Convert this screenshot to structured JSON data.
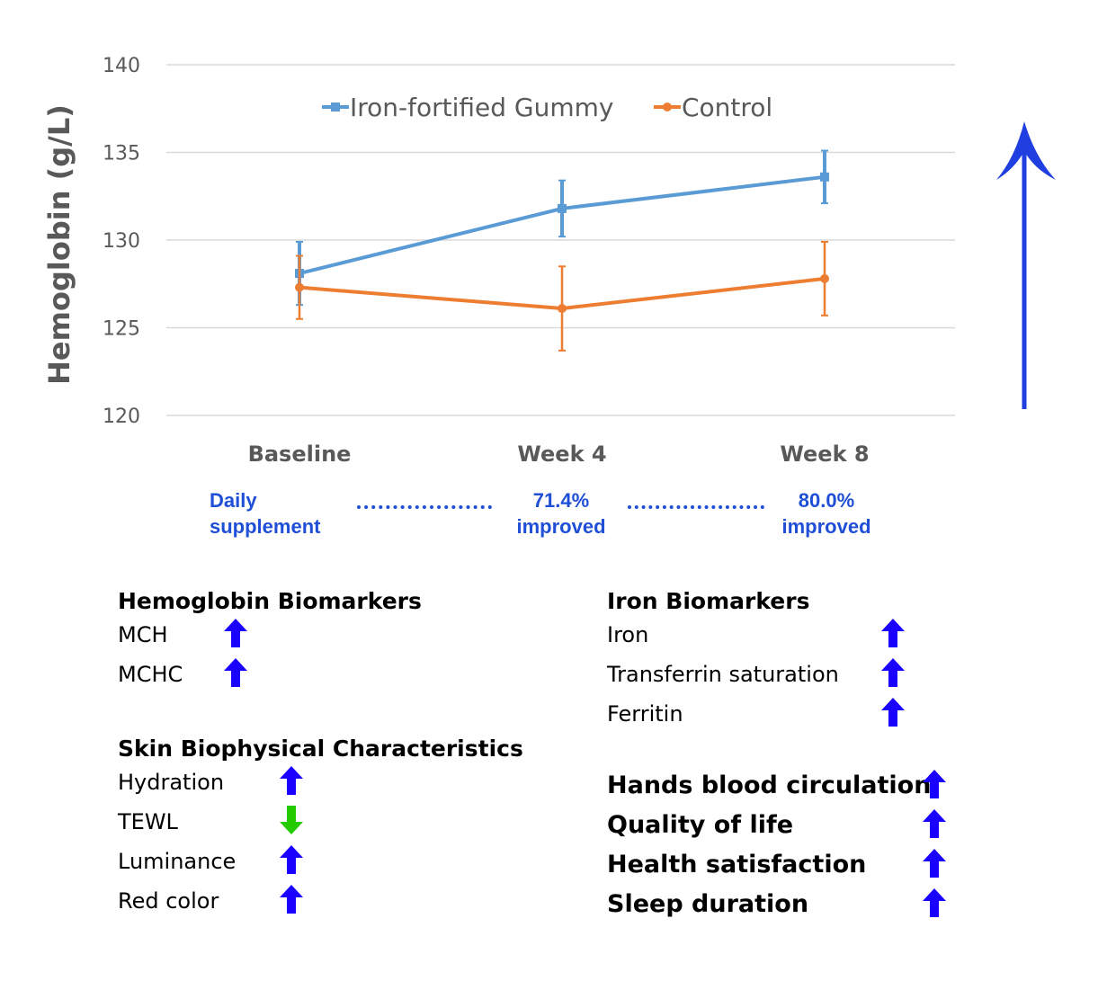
{
  "chart_data": {
    "type": "line",
    "ylabel": "Hemoglobin (g/L)",
    "xlabel": "",
    "ylim": [
      120,
      140
    ],
    "yticks": [
      120,
      125,
      130,
      135,
      140
    ],
    "categories": [
      "Baseline",
      "Week 4",
      "Week 8"
    ],
    "grid": true,
    "legend_position": "top",
    "series": [
      {
        "name": "Iron-fortified Gummy",
        "color": "#5b9bd5",
        "values": [
          128.1,
          131.8,
          133.6
        ],
        "error": [
          1.8,
          1.6,
          1.5
        ]
      },
      {
        "name": "Control",
        "color": "#ed7d31",
        "values": [
          127.3,
          126.1,
          127.8
        ],
        "error": [
          1.8,
          2.4,
          2.1
        ]
      }
    ]
  },
  "annotations": {
    "baseline_line1": "Daily",
    "baseline_line2": "supplement",
    "week4_line1": "71.4%",
    "week4_line2": "improved",
    "week8_line1": "80.0%",
    "week8_line2": "improved",
    "color": "#1f4fd6"
  },
  "hemoglobin_biomarkers": {
    "title": "Hemoglobin Biomarkers",
    "items": [
      {
        "label": "MCH",
        "direction": "up"
      },
      {
        "label": "MCHC",
        "direction": "up"
      }
    ]
  },
  "skin": {
    "title": "Skin Biophysical Characteristics",
    "items": [
      {
        "label": "Hydration",
        "direction": "up"
      },
      {
        "label": "TEWL",
        "direction": "down"
      },
      {
        "label": "Luminance",
        "direction": "up"
      },
      {
        "label": "Red color",
        "direction": "up"
      }
    ]
  },
  "iron_biomarkers": {
    "title": "Iron Biomarkers",
    "items": [
      {
        "label": "Iron",
        "direction": "up"
      },
      {
        "label": "Transferrin saturation",
        "direction": "up"
      },
      {
        "label": "Ferritin",
        "direction": "up"
      }
    ]
  },
  "other_outcomes": {
    "items": [
      {
        "label": "Hands blood circulation",
        "direction": "up"
      },
      {
        "label": "Quality of life",
        "direction": "up"
      },
      {
        "label": "Health satisfaction",
        "direction": "up"
      },
      {
        "label": "Sleep duration",
        "direction": "up"
      }
    ]
  },
  "colors": {
    "up_arrow": "#1a00ff",
    "down_arrow": "#22cc00",
    "big_arrow": "#1f3fe0"
  }
}
